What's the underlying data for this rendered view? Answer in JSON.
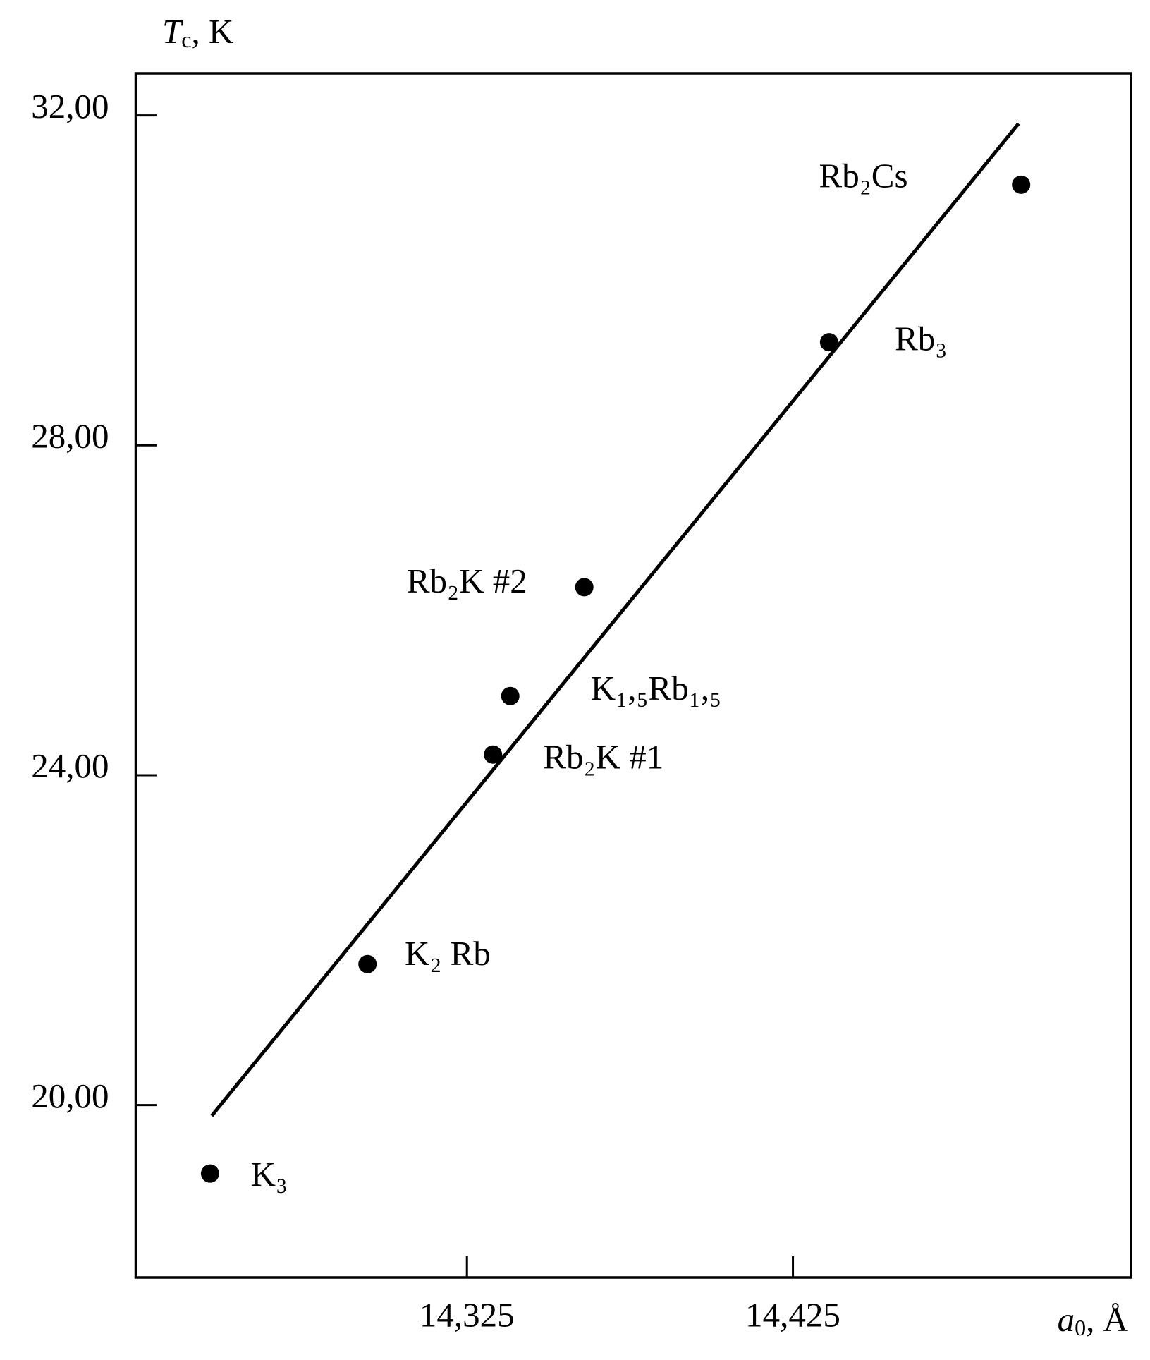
{
  "chart_data": {
    "type": "scatter",
    "ylabel": {
      "symbol": "T",
      "subscript": "c",
      "unit": ", K"
    },
    "xlabel": {
      "symbol": "a",
      "subscript": "0",
      "unit": ", Å"
    },
    "x": [
      14.2462,
      14.2945,
      14.333,
      14.3383,
      14.361,
      14.4361,
      14.495
    ],
    "values": [
      19.17,
      21.71,
      24.25,
      24.96,
      26.28,
      29.25,
      31.16
    ],
    "point_labels": [
      "K₃",
      "K₂ Rb",
      "Rb₂K #1",
      "K₁,₅Rb₁,₅",
      "Rb₂K #2",
      "Rb₃",
      "Rb₂Cs"
    ],
    "color": "#000000",
    "fit": {
      "x": [
        14.2467,
        14.4942
      ],
      "y": [
        19.87,
        31.9
      ]
    },
    "xlim": [
      14.2234,
      14.5287
    ],
    "ylim": [
      17.91,
      32.51
    ],
    "xticks": [
      {
        "value": 14.325,
        "label": "14,325"
      },
      {
        "value": 14.425,
        "label": "14,425"
      }
    ],
    "yticks": [
      {
        "value": 20,
        "label": "20,00"
      },
      {
        "value": 24,
        "label": "24,00"
      },
      {
        "value": 28,
        "label": "28,00"
      },
      {
        "value": 32,
        "label": "32,00"
      }
    ]
  }
}
